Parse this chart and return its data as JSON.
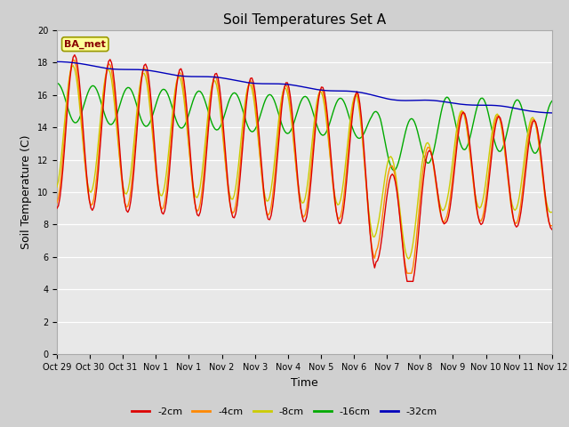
{
  "title": "Soil Temperatures Set A",
  "xlabel": "Time",
  "ylabel": "Soil Temperature (C)",
  "ylim": [
    0,
    20
  ],
  "yticks": [
    0,
    2,
    4,
    6,
    8,
    10,
    12,
    14,
    16,
    18,
    20
  ],
  "xtick_labels": [
    "Oct 29",
    "Oct 30",
    "Oct 31",
    "Nov 1",
    "Nov 1",
    "Nov 2",
    "Nov 3",
    "Nov 4",
    "Nov 5",
    "Nov 6",
    "Nov 7",
    "Nov 8",
    "Nov 9",
    "Nov 10",
    "Nov 11",
    "Nov 12"
  ],
  "series_colors": {
    "-2cm": "#dd0000",
    "-4cm": "#ff8800",
    "-8cm": "#cccc00",
    "-16cm": "#00aa00",
    "-32cm": "#0000bb"
  },
  "series_order": [
    "-2cm",
    "-4cm",
    "-8cm",
    "-16cm",
    "-32cm"
  ],
  "fig_bg": "#d0d0d0",
  "plot_bg": "#e8e8e8",
  "grid_color": "#ffffff",
  "title_fontsize": 11,
  "tick_fontsize": 7,
  "axis_label_fontsize": 9,
  "legend_label": "BA_met",
  "legend_box_facecolor": "#ffff99",
  "legend_box_edgecolor": "#999900"
}
